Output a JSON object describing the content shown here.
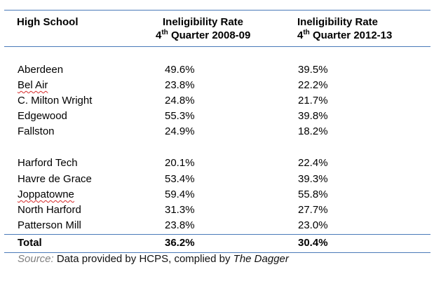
{
  "headers": {
    "school": "High School",
    "rate_label": "Ineligibility Rate",
    "q1_num": "4",
    "q1_suffix": "th",
    "q1_rest": " Quarter 2008-09",
    "q2_num": "4",
    "q2_suffix": "th",
    "q2_rest": " Quarter 2012-13"
  },
  "rows": [
    {
      "name": "Aberdeen",
      "a": "49.6%",
      "b": "39.5%"
    },
    {
      "name": "Bel Air",
      "a": "23.8%",
      "b": "22.2%"
    },
    {
      "name": "C. Milton Wright",
      "a": "24.8%",
      "b": "21.7%"
    },
    {
      "name": "Edgewood",
      "a": "55.3%",
      "b": "39.8%"
    },
    {
      "name": "Fallston",
      "a": "24.9%",
      "b": "18.2%"
    },
    {
      "name": "Harford Tech",
      "a": "20.1%",
      "b": "22.4%"
    },
    {
      "name": "Havre de Grace",
      "a": "53.4%",
      "b": "39.3%"
    },
    {
      "name": "Joppatowne",
      "a": "59.4%",
      "b": "55.8%"
    },
    {
      "name": "North Harford",
      "a": "31.3%",
      "b": "27.7%"
    },
    {
      "name": "Patterson Mill",
      "a": "23.8%",
      "b": "23.0%"
    }
  ],
  "total": {
    "name": "Total",
    "a": "36.2%",
    "b": "30.4%"
  },
  "footnote": {
    "source_label": "Source:",
    "text": " Data provided by HCPS, complied by ",
    "publication": "The Dagger"
  },
  "colors": {
    "rule": "#4a7ab8",
    "source_gray": "#7f7f7f",
    "spellcheck": "#d62a2a"
  }
}
